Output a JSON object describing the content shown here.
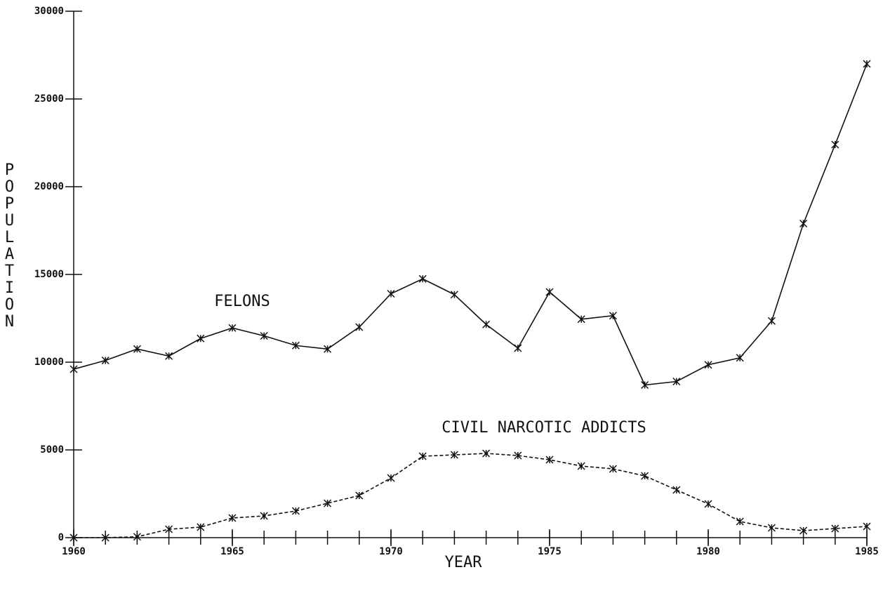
{
  "chart_data": {
    "type": "line",
    "x_label": "YEAR",
    "y_label": "POPULATION",
    "x": [
      1960,
      1961,
      1962,
      1963,
      1964,
      1965,
      1966,
      1967,
      1968,
      1969,
      1970,
      1971,
      1972,
      1973,
      1974,
      1975,
      1976,
      1977,
      1978,
      1979,
      1980,
      1981,
      1982,
      1983,
      1984,
      1985
    ],
    "series": [
      {
        "name": "FELONS",
        "color": "#111111",
        "line_style": "solid",
        "values": [
          9600,
          10100,
          10750,
          10350,
          11350,
          11950,
          11500,
          10950,
          10750,
          12000,
          13900,
          14750,
          13850,
          12150,
          10800,
          14000,
          12450,
          12650,
          8700,
          8900,
          9850,
          10250,
          12350,
          17900,
          22400,
          27000
        ]
      },
      {
        "name": "CIVIL NARCOTIC ADDICTS",
        "color": "#111111",
        "line_style": "dashed",
        "values": [
          0,
          0,
          50,
          480,
          600,
          1120,
          1240,
          1520,
          1960,
          2400,
          3400,
          4640,
          4720,
          4800,
          4680,
          4440,
          4080,
          3920,
          3520,
          2720,
          1920,
          920,
          560,
          400,
          520,
          640
        ]
      }
    ],
    "xlim": [
      1960,
      1985
    ],
    "xticks": [
      1960,
      1965,
      1970,
      1975,
      1980,
      1985
    ],
    "ylim": [
      0,
      30000
    ],
    "yticks": [
      0,
      5000,
      10000,
      15000,
      20000,
      25000,
      30000
    ],
    "grid": false
  }
}
